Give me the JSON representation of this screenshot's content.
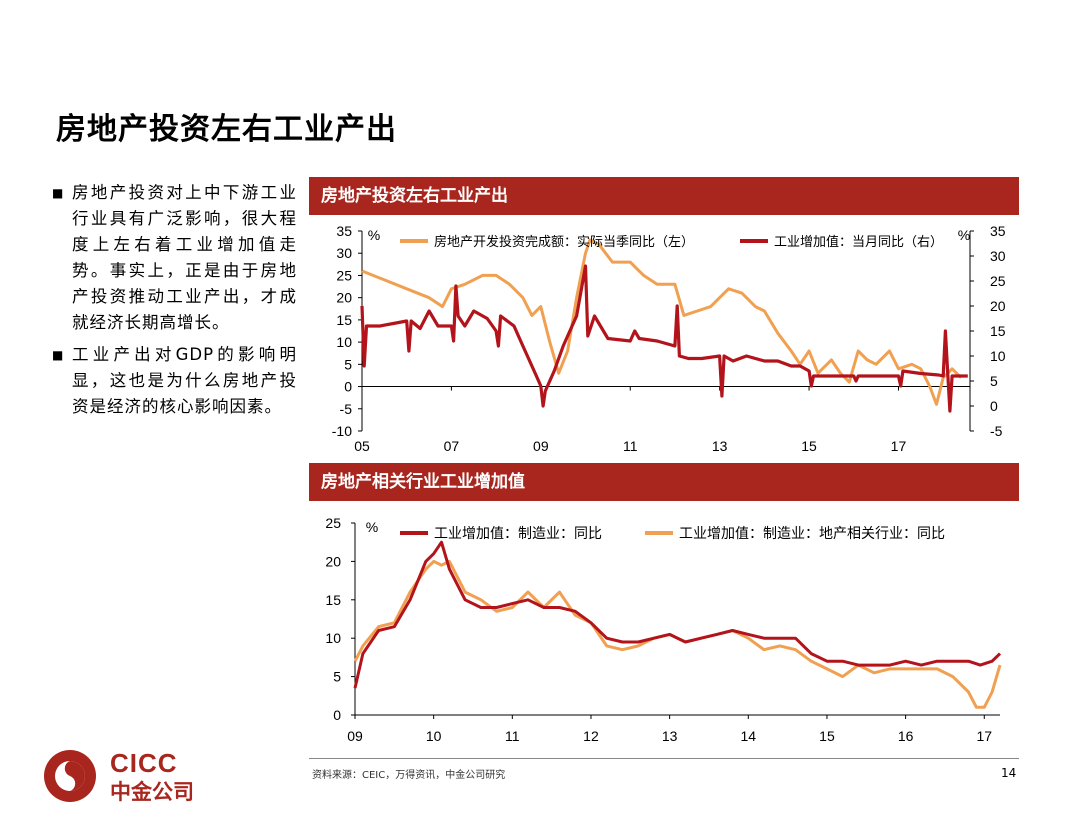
{
  "page": {
    "title": "房地产投资左右工业产出",
    "page_number": "14",
    "source": "资料来源：CEIC，万得资讯，中金公司研究"
  },
  "bullets": [
    "房地产投资对上中下游工业行业具有广泛影响，很大程度上左右着工业增加值走势。事实上，正是由于房地产投资推动工业产出，才成就经济长期高增长。",
    "工业产出对GDP的影响明显，这也是为什么房地产投资是经济的核心影响因素。"
  ],
  "logo": {
    "en": "CICC",
    "cn": "中金公司",
    "color": "#a8261e"
  },
  "colors": {
    "header": "#a8261e",
    "dark_red": "#b3141b",
    "orange": "#f0a050"
  },
  "chart_data": [
    {
      "type": "line",
      "title": "房地产投资左右工业产出",
      "ylabel_left": "%",
      "ylabel_right": "%",
      "ylim_left": [
        -10,
        35
      ],
      "ylim_right": [
        -5,
        35
      ],
      "yticks_left": [
        35,
        30,
        25,
        20,
        15,
        10,
        5,
        0,
        -5,
        -10
      ],
      "yticks_right": [
        35,
        30,
        25,
        20,
        15,
        10,
        5,
        0,
        -5
      ],
      "xticks": [
        "05",
        "07",
        "09",
        "11",
        "13",
        "15",
        "17"
      ],
      "xlim": [
        2005,
        2018.6
      ],
      "legend_position": "top",
      "series": [
        {
          "name": "房地产开发投资完成额：实际当季同比（左）",
          "axis": "left",
          "color": "#f0a050",
          "points": [
            [
              2005.0,
              26
            ],
            [
              2005.5,
              24
            ],
            [
              2006.0,
              22
            ],
            [
              2006.5,
              20
            ],
            [
              2006.8,
              18
            ],
            [
              2007.0,
              22
            ],
            [
              2007.3,
              23
            ],
            [
              2007.7,
              25
            ],
            [
              2008.0,
              25
            ],
            [
              2008.3,
              23
            ],
            [
              2008.6,
              20
            ],
            [
              2008.8,
              16
            ],
            [
              2009.0,
              18
            ],
            [
              2009.2,
              10
            ],
            [
              2009.4,
              3
            ],
            [
              2009.6,
              8
            ],
            [
              2009.8,
              20
            ],
            [
              2010.0,
              30
            ],
            [
              2010.1,
              33
            ],
            [
              2010.3,
              32
            ],
            [
              2010.6,
              28
            ],
            [
              2011.0,
              28
            ],
            [
              2011.3,
              25
            ],
            [
              2011.6,
              23
            ],
            [
              2012.0,
              23
            ],
            [
              2012.2,
              16
            ],
            [
              2012.5,
              17
            ],
            [
              2012.8,
              18
            ],
            [
              2013.0,
              20
            ],
            [
              2013.2,
              22
            ],
            [
              2013.5,
              21
            ],
            [
              2013.8,
              18
            ],
            [
              2014.0,
              17
            ],
            [
              2014.3,
              12
            ],
            [
              2014.6,
              8
            ],
            [
              2014.8,
              5
            ],
            [
              2015.0,
              8
            ],
            [
              2015.2,
              3
            ],
            [
              2015.5,
              6
            ],
            [
              2015.7,
              3
            ],
            [
              2015.9,
              1
            ],
            [
              2016.1,
              8
            ],
            [
              2016.3,
              6
            ],
            [
              2016.5,
              5
            ],
            [
              2016.8,
              8
            ],
            [
              2017.0,
              4
            ],
            [
              2017.3,
              5
            ],
            [
              2017.5,
              4
            ],
            [
              2017.7,
              0
            ],
            [
              2017.85,
              -4
            ],
            [
              2018.0,
              2
            ],
            [
              2018.2,
              4
            ],
            [
              2018.4,
              2
            ]
          ]
        },
        {
          "name": "工业增加值：当月同比（右）",
          "axis": "right",
          "color": "#b3141b",
          "points": [
            [
              2005.0,
              20
            ],
            [
              2005.05,
              8
            ],
            [
              2005.1,
              16
            ],
            [
              2005.4,
              16
            ],
            [
              2005.7,
              16.5
            ],
            [
              2006.0,
              17
            ],
            [
              2006.05,
              11
            ],
            [
              2006.1,
              17
            ],
            [
              2006.3,
              15.5
            ],
            [
              2006.5,
              19
            ],
            [
              2006.7,
              16
            ],
            [
              2007.0,
              16
            ],
            [
              2007.05,
              13
            ],
            [
              2007.1,
              24
            ],
            [
              2007.15,
              18
            ],
            [
              2007.3,
              16
            ],
            [
              2007.5,
              19
            ],
            [
              2007.8,
              17.5
            ],
            [
              2008.0,
              15
            ],
            [
              2008.05,
              12
            ],
            [
              2008.1,
              18
            ],
            [
              2008.4,
              16
            ],
            [
              2008.6,
              12
            ],
            [
              2008.9,
              6
            ],
            [
              2009.0,
              4
            ],
            [
              2009.05,
              0
            ],
            [
              2009.1,
              3
            ],
            [
              2009.3,
              7
            ],
            [
              2009.5,
              12
            ],
            [
              2009.7,
              16
            ],
            [
              2009.8,
              18
            ],
            [
              2010.0,
              28
            ],
            [
              2010.05,
              14
            ],
            [
              2010.2,
              18
            ],
            [
              2010.5,
              13.5
            ],
            [
              2011.0,
              13
            ],
            [
              2011.1,
              15
            ],
            [
              2011.2,
              13.5
            ],
            [
              2011.6,
              13
            ],
            [
              2012.0,
              12
            ],
            [
              2012.05,
              20
            ],
            [
              2012.1,
              10
            ],
            [
              2012.3,
              9.5
            ],
            [
              2012.6,
              9.5
            ],
            [
              2013.0,
              10
            ],
            [
              2013.05,
              2
            ],
            [
              2013.1,
              10
            ],
            [
              2013.3,
              9
            ],
            [
              2013.6,
              10
            ],
            [
              2014.0,
              9
            ],
            [
              2014.3,
              9
            ],
            [
              2014.6,
              8
            ],
            [
              2014.8,
              8
            ],
            [
              2015.0,
              7
            ],
            [
              2015.05,
              4
            ],
            [
              2015.1,
              6
            ],
            [
              2015.3,
              6
            ],
            [
              2015.6,
              6
            ],
            [
              2015.8,
              6
            ],
            [
              2016.0,
              6
            ],
            [
              2016.05,
              5
            ],
            [
              2016.1,
              6
            ],
            [
              2016.5,
              6
            ],
            [
              2016.9,
              6
            ],
            [
              2017.0,
              6
            ],
            [
              2017.05,
              4
            ],
            [
              2017.1,
              7
            ],
            [
              2017.5,
              6.5
            ],
            [
              2017.9,
              6.2
            ],
            [
              2018.0,
              6
            ],
            [
              2018.05,
              15
            ],
            [
              2018.1,
              7
            ],
            [
              2018.15,
              -1
            ],
            [
              2018.2,
              6
            ],
            [
              2018.4,
              6
            ],
            [
              2018.55,
              6
            ]
          ]
        }
      ]
    },
    {
      "type": "line",
      "title": "房地产相关行业工业增加值",
      "ylabel": "%",
      "ylim": [
        0,
        25
      ],
      "yticks": [
        25,
        20,
        15,
        10,
        5,
        0
      ],
      "xticks": [
        "09",
        "10",
        "11",
        "12",
        "13",
        "14",
        "15",
        "16",
        "17"
      ],
      "xlim": [
        2009,
        2017.2
      ],
      "legend_position": "top",
      "series": [
        {
          "name": "工业增加值：制造业：同比",
          "color": "#b3141b",
          "points": [
            [
              2009.0,
              3.5
            ],
            [
              2009.1,
              8
            ],
            [
              2009.3,
              11
            ],
            [
              2009.5,
              11.5
            ],
            [
              2009.7,
              15
            ],
            [
              2009.9,
              20
            ],
            [
              2010.0,
              21
            ],
            [
              2010.1,
              22.5
            ],
            [
              2010.2,
              19
            ],
            [
              2010.4,
              15
            ],
            [
              2010.6,
              14
            ],
            [
              2010.8,
              14
            ],
            [
              2011.0,
              14.5
            ],
            [
              2011.2,
              15
            ],
            [
              2011.4,
              14
            ],
            [
              2011.6,
              14
            ],
            [
              2011.8,
              13.5
            ],
            [
              2012.0,
              12
            ],
            [
              2012.2,
              10
            ],
            [
              2012.4,
              9.5
            ],
            [
              2012.6,
              9.5
            ],
            [
              2012.8,
              10
            ],
            [
              2013.0,
              10.5
            ],
            [
              2013.2,
              9.5
            ],
            [
              2013.4,
              10
            ],
            [
              2013.6,
              10.5
            ],
            [
              2013.8,
              11
            ],
            [
              2014.0,
              10.5
            ],
            [
              2014.2,
              10
            ],
            [
              2014.4,
              10
            ],
            [
              2014.6,
              10
            ],
            [
              2014.8,
              8
            ],
            [
              2015.0,
              7
            ],
            [
              2015.2,
              7
            ],
            [
              2015.4,
              6.5
            ],
            [
              2015.6,
              6.5
            ],
            [
              2015.8,
              6.5
            ],
            [
              2016.0,
              7
            ],
            [
              2016.2,
              6.5
            ],
            [
              2016.4,
              7
            ],
            [
              2016.6,
              7
            ],
            [
              2016.8,
              7
            ],
            [
              2016.95,
              6.5
            ],
            [
              2017.1,
              7
            ],
            [
              2017.2,
              8
            ]
          ]
        },
        {
          "name": "工业增加值：制造业：地产相关行业：同比",
          "color": "#f0a050",
          "points": [
            [
              2009.0,
              7
            ],
            [
              2009.1,
              9
            ],
            [
              2009.3,
              11.5
            ],
            [
              2009.5,
              12
            ],
            [
              2009.7,
              16
            ],
            [
              2009.9,
              19
            ],
            [
              2010.0,
              20
            ],
            [
              2010.1,
              19.5
            ],
            [
              2010.2,
              20
            ],
            [
              2010.4,
              16
            ],
            [
              2010.6,
              15
            ],
            [
              2010.8,
              13.5
            ],
            [
              2011.0,
              14
            ],
            [
              2011.2,
              16
            ],
            [
              2011.4,
              14
            ],
            [
              2011.6,
              16
            ],
            [
              2011.8,
              13
            ],
            [
              2012.0,
              12
            ],
            [
              2012.2,
              9
            ],
            [
              2012.4,
              8.5
            ],
            [
              2012.6,
              9
            ],
            [
              2012.8,
              10
            ],
            [
              2013.0,
              10.5
            ],
            [
              2013.2,
              9.5
            ],
            [
              2013.4,
              10
            ],
            [
              2013.6,
              10.5
            ],
            [
              2013.8,
              11
            ],
            [
              2014.0,
              10
            ],
            [
              2014.2,
              8.5
            ],
            [
              2014.4,
              9
            ],
            [
              2014.6,
              8.5
            ],
            [
              2014.8,
              7
            ],
            [
              2015.0,
              6
            ],
            [
              2015.2,
              5
            ],
            [
              2015.4,
              6.5
            ],
            [
              2015.6,
              5.5
            ],
            [
              2015.8,
              6
            ],
            [
              2016.0,
              6
            ],
            [
              2016.2,
              6
            ],
            [
              2016.4,
              6
            ],
            [
              2016.6,
              5
            ],
            [
              2016.8,
              3
            ],
            [
              2016.9,
              1
            ],
            [
              2017.0,
              1
            ],
            [
              2017.1,
              3
            ],
            [
              2017.2,
              6.5
            ]
          ]
        }
      ]
    }
  ]
}
